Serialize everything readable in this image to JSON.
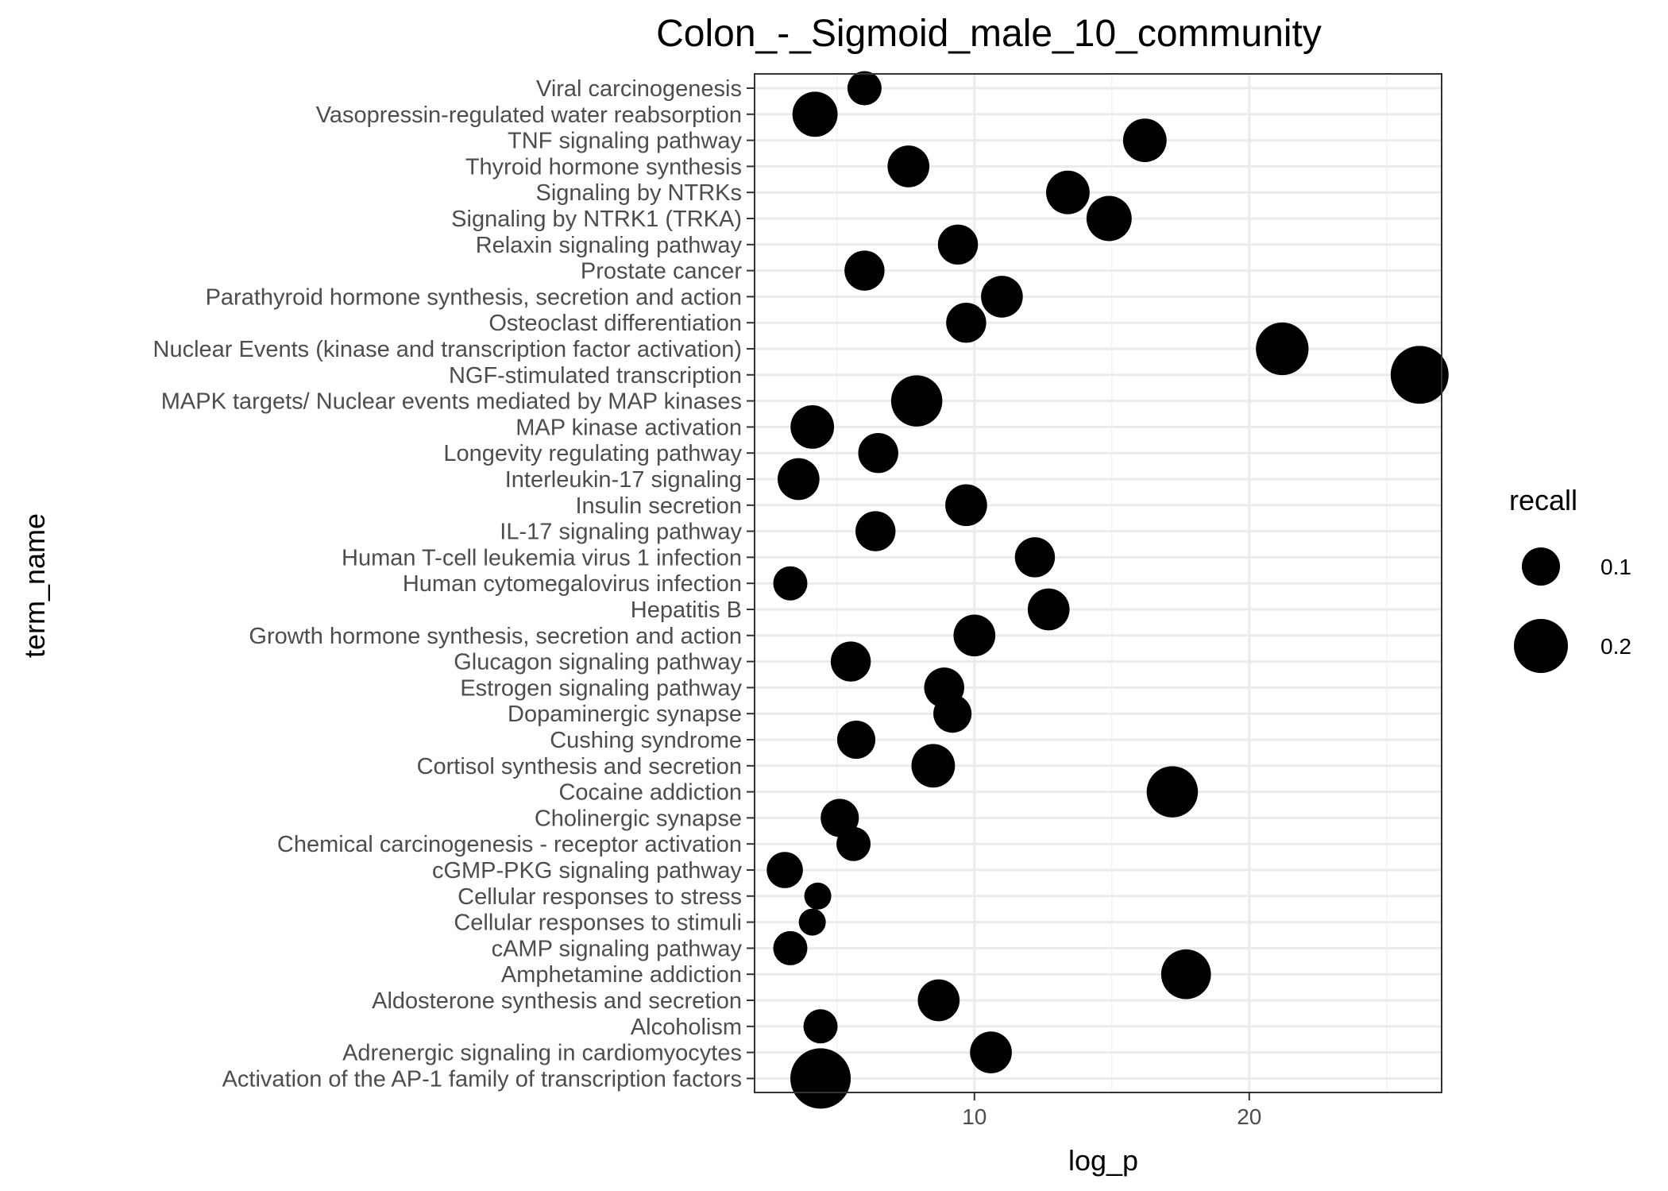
{
  "chart_data": {
    "type": "scatter",
    "title": "Colon_-_Sigmoid_male_10_community",
    "xlabel": "log_p",
    "ylabel": "term_name",
    "x_ticks": [
      10,
      20
    ],
    "xlim": [
      2.0,
      27.0
    ],
    "grid": true,
    "legend": {
      "title": "recall",
      "placement": "right",
      "items": [
        {
          "label": "0.1",
          "value": 0.1
        },
        {
          "label": "0.2",
          "value": 0.2
        }
      ]
    },
    "points": [
      {
        "term": "Viral carcinogenesis",
        "log_p": 6.0,
        "recall": 0.08
      },
      {
        "term": "Vasopressin-regulated water reabsorption",
        "log_p": 4.2,
        "recall": 0.14
      },
      {
        "term": "TNF signaling pathway",
        "log_p": 16.2,
        "recall": 0.13
      },
      {
        "term": "Thyroid hormone synthesis",
        "log_p": 7.6,
        "recall": 0.12
      },
      {
        "term": "Signaling by NTRKs",
        "log_p": 13.4,
        "recall": 0.13
      },
      {
        "term": "Signaling by NTRK1 (TRKA)",
        "log_p": 14.9,
        "recall": 0.14
      },
      {
        "term": "Relaxin signaling pathway",
        "log_p": 9.4,
        "recall": 0.11
      },
      {
        "term": "Prostate cancer",
        "log_p": 6.0,
        "recall": 0.11
      },
      {
        "term": "Parathyroid hormone synthesis, secretion and action",
        "log_p": 11.0,
        "recall": 0.12
      },
      {
        "term": "Osteoclast differentiation",
        "log_p": 9.7,
        "recall": 0.11
      },
      {
        "term": "Nuclear Events (kinase and transcription factor activation)",
        "log_p": 21.2,
        "recall": 0.19
      },
      {
        "term": "NGF-stimulated transcription",
        "log_p": 26.2,
        "recall": 0.23
      },
      {
        "term": "MAPK targets/ Nuclear events mediated by MAP kinases",
        "log_p": 7.9,
        "recall": 0.18
      },
      {
        "term": "MAP kinase activation",
        "log_p": 4.1,
        "recall": 0.13
      },
      {
        "term": "Longevity regulating pathway",
        "log_p": 6.5,
        "recall": 0.11
      },
      {
        "term": "Interleukin-17 signaling",
        "log_p": 3.6,
        "recall": 0.12
      },
      {
        "term": "Insulin secretion",
        "log_p": 9.7,
        "recall": 0.12
      },
      {
        "term": "IL-17 signaling pathway",
        "log_p": 6.4,
        "recall": 0.11
      },
      {
        "term": "Human T-cell leukemia virus 1 infection",
        "log_p": 12.2,
        "recall": 0.11
      },
      {
        "term": "Human cytomegalovirus infection",
        "log_p": 3.3,
        "recall": 0.08
      },
      {
        "term": "Hepatitis B",
        "log_p": 12.7,
        "recall": 0.12
      },
      {
        "term": "Growth hormone synthesis, secretion and action",
        "log_p": 10.0,
        "recall": 0.12
      },
      {
        "term": "Glucagon signaling pathway",
        "log_p": 5.5,
        "recall": 0.11
      },
      {
        "term": "Estrogen signaling pathway",
        "log_p": 8.9,
        "recall": 0.11
      },
      {
        "term": "Dopaminergic synapse",
        "log_p": 9.2,
        "recall": 0.1
      },
      {
        "term": "Cushing syndrome",
        "log_p": 5.7,
        "recall": 0.1
      },
      {
        "term": "Cortisol synthesis and secretion",
        "log_p": 8.5,
        "recall": 0.13
      },
      {
        "term": "Cocaine addiction",
        "log_p": 17.2,
        "recall": 0.18
      },
      {
        "term": "Cholinergic synapse",
        "log_p": 5.1,
        "recall": 0.1
      },
      {
        "term": "Chemical carcinogenesis - receptor activation",
        "log_p": 5.6,
        "recall": 0.08
      },
      {
        "term": "cGMP-PKG signaling pathway",
        "log_p": 3.1,
        "recall": 0.09
      },
      {
        "term": "Cellular responses to stress",
        "log_p": 4.3,
        "recall": 0.05
      },
      {
        "term": "Cellular responses to stimuli",
        "log_p": 4.1,
        "recall": 0.05
      },
      {
        "term": "cAMP signaling pathway",
        "log_p": 3.3,
        "recall": 0.08
      },
      {
        "term": "Amphetamine addiction",
        "log_p": 17.7,
        "recall": 0.17
      },
      {
        "term": "Aldosterone synthesis and secretion",
        "log_p": 8.7,
        "recall": 0.12
      },
      {
        "term": "Alcoholism",
        "log_p": 4.4,
        "recall": 0.08
      },
      {
        "term": "Adrenergic signaling in cardiomyocytes",
        "log_p": 10.6,
        "recall": 0.12
      },
      {
        "term": "Activation of the AP-1 family of transcription factors",
        "log_p": 4.4,
        "recall": 0.25
      }
    ]
  }
}
